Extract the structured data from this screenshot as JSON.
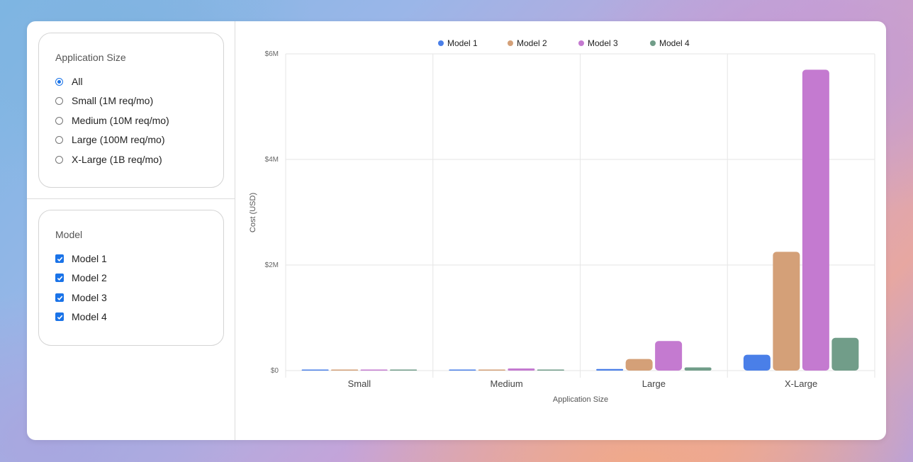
{
  "filters": {
    "size": {
      "title": "Application Size",
      "options": [
        "All",
        "Small (1M req/mo)",
        "Medium (10M req/mo)",
        "Large (100M req/mo)",
        "X-Large (1B req/mo)"
      ],
      "selected": "All"
    },
    "model": {
      "title": "Model",
      "options": [
        "Model 1",
        "Model 2",
        "Model 3",
        "Model 4"
      ],
      "checked": [
        true,
        true,
        true,
        true
      ]
    }
  },
  "colors": {
    "Model 1": "#4a7fe8",
    "Model 2": "#d4a078",
    "Model 3": "#c47ad0",
    "Model 4": "#719d89"
  },
  "chart_data": {
    "type": "bar",
    "categories": [
      "Small",
      "Medium",
      "Large",
      "X-Large"
    ],
    "series": [
      {
        "name": "Model 1",
        "values": [
          3000,
          10000,
          30000,
          300000
        ]
      },
      {
        "name": "Model 2",
        "values": [
          2000,
          20000,
          220000,
          2250000
        ]
      },
      {
        "name": "Model 3",
        "values": [
          6000,
          40000,
          560000,
          5700000
        ]
      },
      {
        "name": "Model 4",
        "values": [
          6000,
          6000,
          60000,
          620000
        ]
      }
    ],
    "xlabel": "Application Size",
    "ylabel": "Cost (USD)",
    "ylim": [
      0,
      6000000
    ],
    "yticks": [
      0,
      2000000,
      4000000,
      6000000
    ],
    "ytick_labels": [
      "$0",
      "$2M",
      "$4M",
      "$6M"
    ],
    "grid": true,
    "legend_position": "top-center"
  }
}
